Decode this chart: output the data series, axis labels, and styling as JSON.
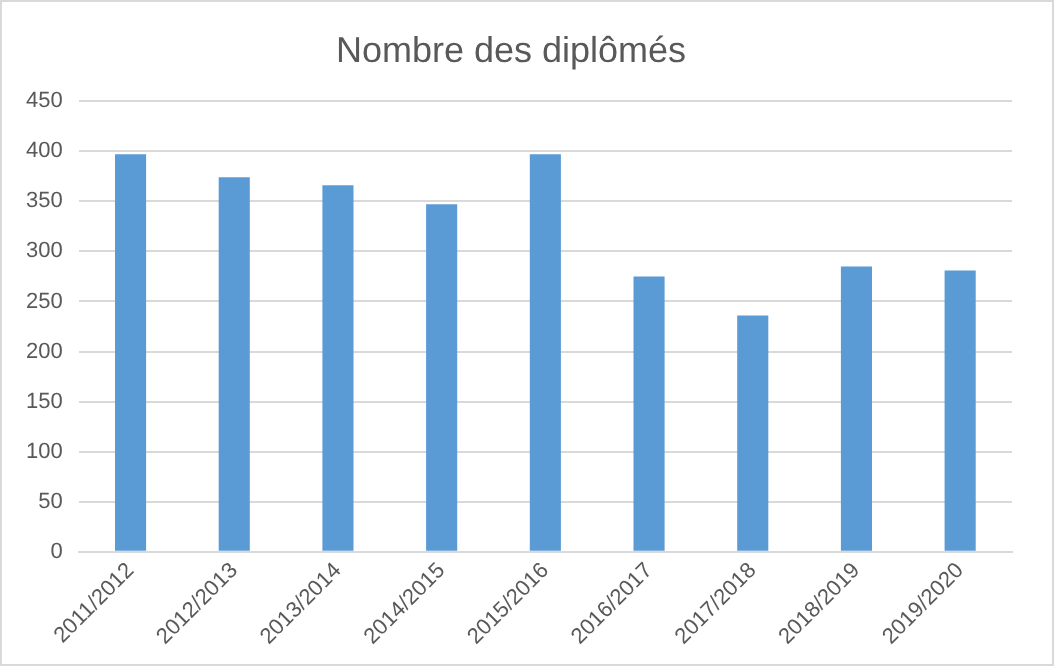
{
  "chart_data": {
    "type": "bar",
    "title": "Nombre des diplômés",
    "categories": [
      "2011/2012",
      "2012/2013",
      "2013/2014",
      "2014/2015",
      "2015/2016",
      "2016/2017",
      "2017/2018",
      "2018/2019",
      "2019/2020"
    ],
    "values": [
      397,
      374,
      366,
      347,
      397,
      275,
      236,
      285,
      281
    ],
    "color": "#5b9bd5",
    "ylim": [
      0,
      450
    ],
    "yticks": [
      0,
      50,
      100,
      150,
      200,
      250,
      300,
      350,
      400,
      450
    ],
    "grid": "y",
    "legend": false
  }
}
